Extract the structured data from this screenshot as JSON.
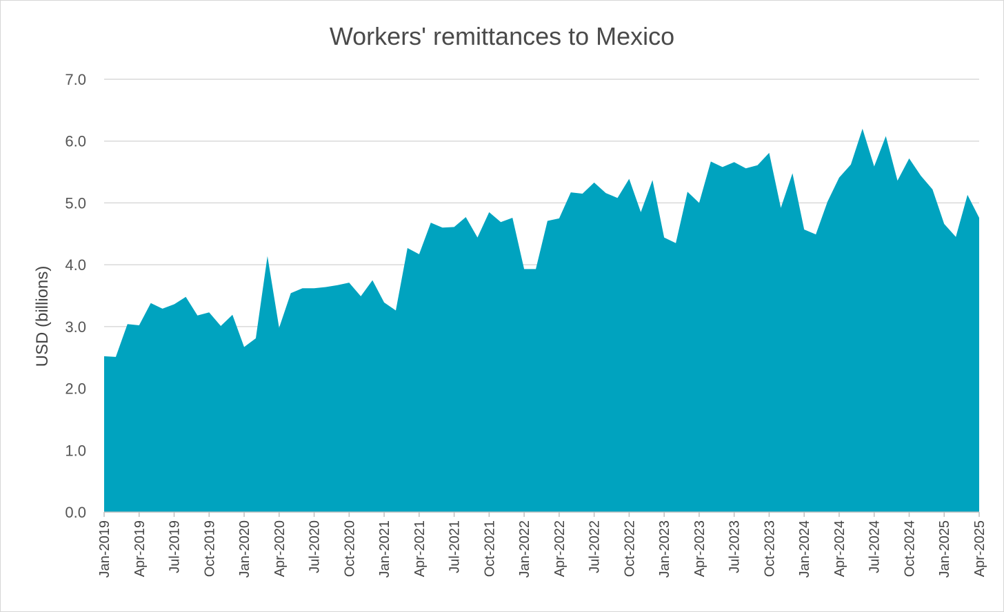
{
  "chart_data": {
    "type": "area",
    "title": "Workers' remittances to Mexico",
    "xlabel": "",
    "ylabel": "USD (billions)",
    "ylim": [
      0,
      7
    ],
    "yticks": [
      "0.0",
      "1.0",
      "2.0",
      "3.0",
      "4.0",
      "5.0",
      "6.0",
      "7.0"
    ],
    "grid": true,
    "legend": "none",
    "color": "#00a3bf",
    "x": [
      "Jan-2019",
      "Feb-2019",
      "Mar-2019",
      "Apr-2019",
      "May-2019",
      "Jun-2019",
      "Jul-2019",
      "Aug-2019",
      "Sep-2019",
      "Oct-2019",
      "Nov-2019",
      "Dec-2019",
      "Jan-2020",
      "Feb-2020",
      "Mar-2020",
      "Apr-2020",
      "May-2020",
      "Jun-2020",
      "Jul-2020",
      "Aug-2020",
      "Sep-2020",
      "Oct-2020",
      "Nov-2020",
      "Dec-2020",
      "Jan-2021",
      "Feb-2021",
      "Mar-2021",
      "Apr-2021",
      "May-2021",
      "Jun-2021",
      "Jul-2021",
      "Aug-2021",
      "Sep-2021",
      "Oct-2021",
      "Nov-2021",
      "Dec-2021",
      "Jan-2022",
      "Feb-2022",
      "Mar-2022",
      "Apr-2022",
      "May-2022",
      "Jun-2022",
      "Jul-2022",
      "Aug-2022",
      "Sep-2022",
      "Oct-2022",
      "Nov-2022",
      "Dec-2022",
      "Jan-2023",
      "Feb-2023",
      "Mar-2023",
      "Apr-2023",
      "May-2023",
      "Jun-2023",
      "Jul-2023",
      "Aug-2023",
      "Sep-2023",
      "Oct-2023",
      "Nov-2023",
      "Dec-2023",
      "Jan-2024",
      "Feb-2024",
      "Mar-2024",
      "Apr-2024",
      "May-2024",
      "Jun-2024",
      "Jul-2024",
      "Aug-2024",
      "Sep-2024",
      "Oct-2024",
      "Nov-2024",
      "Dec-2024",
      "Jan-2025",
      "Feb-2025",
      "Mar-2025",
      "Apr-2025"
    ],
    "xtick_labels": [
      "Jan-2019",
      "Apr-2019",
      "Jul-2019",
      "Oct-2019",
      "Jan-2020",
      "Apr-2020",
      "Jul-2020",
      "Oct-2020",
      "Jan-2021",
      "Apr-2021",
      "Jul-2021",
      "Oct-2021",
      "Jan-2022",
      "Apr-2022",
      "Jul-2022",
      "Oct-2022",
      "Jan-2023",
      "Apr-2023",
      "Jul-2023",
      "Oct-2023",
      "Jan-2024",
      "Apr-2024",
      "Jul-2024",
      "Oct-2024",
      "Jan-2025",
      "Apr-2025"
    ],
    "series": [
      {
        "values": [
          2.52,
          2.51,
          3.04,
          3.02,
          3.38,
          3.29,
          3.36,
          3.48,
          3.18,
          3.23,
          3.01,
          3.19,
          2.67,
          2.81,
          4.14,
          2.98,
          3.54,
          3.62,
          3.62,
          3.64,
          3.67,
          3.71,
          3.49,
          3.75,
          3.39,
          3.26,
          4.27,
          4.17,
          4.68,
          4.6,
          4.61,
          4.77,
          4.44,
          4.85,
          4.69,
          4.76,
          3.93,
          3.93,
          4.71,
          4.75,
          5.17,
          5.15,
          5.33,
          5.16,
          5.08,
          5.39,
          4.85,
          5.37,
          4.44,
          4.35,
          5.18,
          5.0,
          5.67,
          5.58,
          5.66,
          5.56,
          5.61,
          5.81,
          4.92,
          5.48,
          4.57,
          4.49,
          5.02,
          5.41,
          5.62,
          6.2,
          5.59,
          6.08,
          5.36,
          5.72,
          5.44,
          5.22,
          4.66,
          4.45,
          5.13,
          4.76
        ]
      }
    ]
  }
}
